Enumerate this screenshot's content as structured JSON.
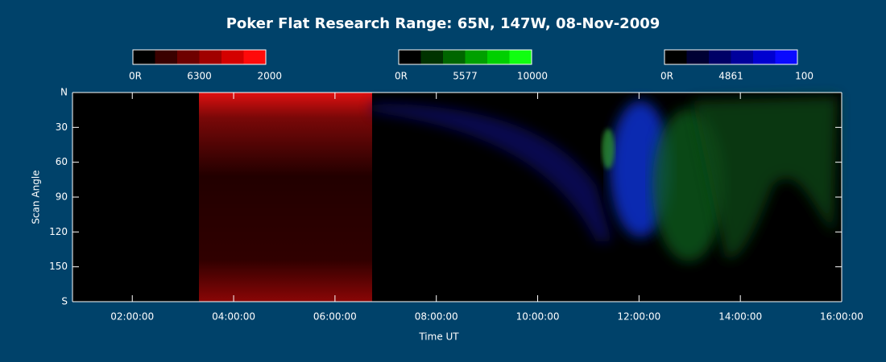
{
  "chart_data": {
    "type": "keogram",
    "title": "Poker Flat Research Range: 65N, 147W, 08-Nov-2009",
    "colorbars": [
      {
        "min_label": "0R",
        "wavelength": "6300",
        "max_label": "2000",
        "colors": [
          "#000000",
          "#3a0000",
          "#6e0000",
          "#a00000",
          "#d40000",
          "#ff0a0a"
        ]
      },
      {
        "min_label": "0R",
        "wavelength": "5577",
        "max_label": "10000",
        "colors": [
          "#000000",
          "#003300",
          "#006600",
          "#00a000",
          "#00d000",
          "#10ff10"
        ]
      },
      {
        "min_label": "0R",
        "wavelength": "4861",
        "max_label": "100",
        "colors": [
          "#000000",
          "#000033",
          "#000066",
          "#00009c",
          "#0000d0",
          "#0a0aff"
        ]
      }
    ],
    "y_label": "Scan Angle",
    "x_label": "Time UT",
    "ylim": [
      0,
      180
    ],
    "yticks": [
      {
        "value": 0,
        "label": "N"
      },
      30,
      60,
      90,
      120,
      150,
      {
        "value": 180,
        "label": "S"
      }
    ],
    "xlim": [
      0.82,
      16
    ],
    "xticks": [
      {
        "value": 2,
        "label": "02:00:00"
      },
      {
        "value": 4,
        "label": "04:00:00"
      },
      {
        "value": 6,
        "label": "06:00:00"
      },
      {
        "value": 8,
        "label": "08:00:00"
      },
      {
        "value": 10,
        "label": "10:00:00"
      },
      {
        "value": 12,
        "label": "12:00:00"
      },
      {
        "value": 14,
        "label": "14:00:00"
      },
      {
        "value": 16,
        "label": "16:00:00"
      }
    ]
  }
}
